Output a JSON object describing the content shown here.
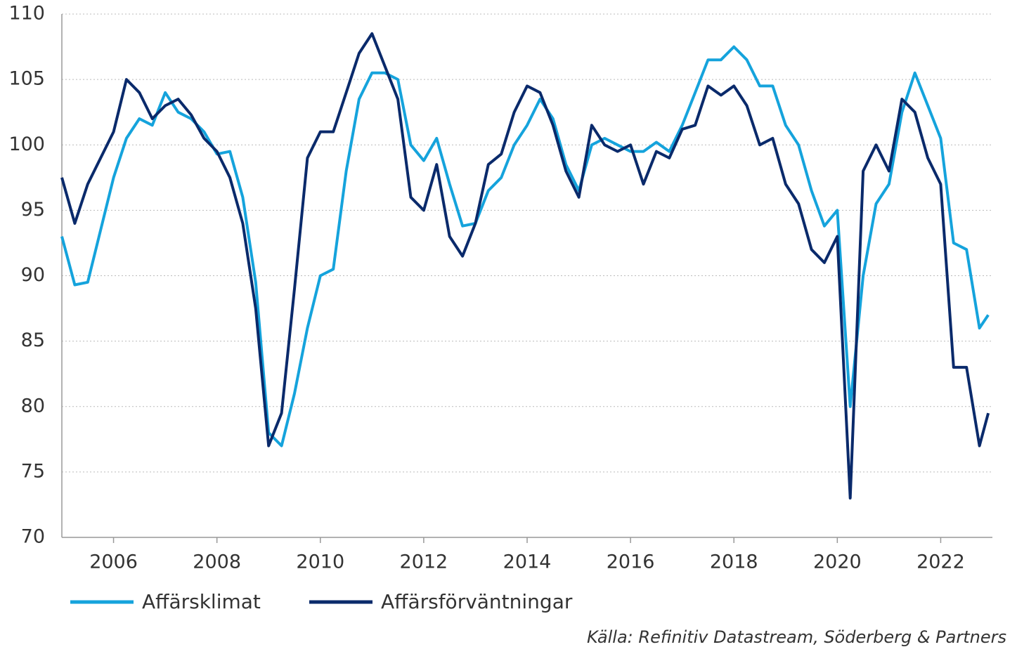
{
  "chart_data": {
    "type": "line",
    "x": [
      2005,
      2005.25,
      2005.5,
      2005.75,
      2006,
      2006.25,
      2006.5,
      2006.75,
      2007,
      2007.25,
      2007.5,
      2007.75,
      2008,
      2008.25,
      2008.5,
      2008.75,
      2009,
      2009.25,
      2009.5,
      2009.75,
      2010,
      2010.25,
      2010.5,
      2010.75,
      2011,
      2011.25,
      2011.5,
      2011.75,
      2012,
      2012.25,
      2012.5,
      2012.75,
      2013,
      2013.25,
      2013.5,
      2013.75,
      2014,
      2014.25,
      2014.5,
      2014.75,
      2015,
      2015.25,
      2015.5,
      2015.75,
      2016,
      2016.25,
      2016.5,
      2016.75,
      2017,
      2017.25,
      2017.5,
      2017.75,
      2018,
      2018.25,
      2018.5,
      2018.75,
      2019,
      2019.25,
      2019.5,
      2019.75,
      2020,
      2020.25,
      2020.5,
      2020.75,
      2021,
      2021.25,
      2021.5,
      2021.75,
      2022,
      2022.25,
      2022.5,
      2022.75,
      2022.92
    ],
    "series": [
      {
        "name": "Affärsklimat",
        "color": "#15a3dc",
        "values": [
          93,
          89.3,
          89.5,
          93.5,
          97.5,
          100.5,
          102,
          101.5,
          104,
          102.5,
          102,
          101,
          99.3,
          99.5,
          96,
          89.5,
          78,
          77,
          81,
          86,
          90,
          90.5,
          98,
          103.5,
          105.5,
          105.5,
          105,
          100,
          98.8,
          100.5,
          97,
          93.8,
          94,
          96.5,
          97.5,
          100,
          101.5,
          103.5,
          102,
          98.5,
          96.5,
          100,
          100.5,
          100,
          99.5,
          99.5,
          100.2,
          99.5,
          101.5,
          104,
          106.5,
          106.5,
          107.5,
          106.5,
          104.5,
          104.5,
          101.5,
          100,
          96.5,
          93.8,
          95,
          80,
          90,
          95.5,
          97,
          102.5,
          105.5,
          103,
          100.5,
          92.5,
          92,
          86,
          87
        ]
      },
      {
        "name": "Affärsförväntningar",
        "color": "#0a2a6b",
        "values": [
          97.5,
          94,
          97,
          99,
          101,
          105,
          104,
          102,
          103,
          103.5,
          102.3,
          100.5,
          99.5,
          97.5,
          94,
          87.5,
          77,
          79.5,
          89,
          99,
          101,
          101,
          104,
          107,
          108.5,
          106,
          103.5,
          96,
          95,
          98.5,
          93,
          91.5,
          94,
          98.5,
          99.3,
          102.5,
          104.5,
          104,
          101.5,
          98,
          96,
          101.5,
          100,
          99.5,
          100,
          97,
          99.5,
          99,
          101.2,
          101.5,
          104.5,
          103.8,
          104.5,
          103,
          100,
          100.5,
          97,
          95.5,
          92,
          91,
          93,
          73,
          98,
          100,
          98,
          103.5,
          102.5,
          99,
          97,
          83,
          83,
          77,
          79.5
        ]
      }
    ],
    "xlim": [
      2005,
      2023
    ],
    "xticks": [
      2006,
      2008,
      2010,
      2012,
      2014,
      2016,
      2018,
      2020,
      2022
    ],
    "ylim": [
      70,
      110
    ],
    "yticks": [
      70,
      75,
      80,
      85,
      90,
      95,
      100,
      105,
      110
    ],
    "grid": true,
    "legend": "bottom-left",
    "source": "Källa: Refinitiv Datastream, Söderberg & Partners"
  }
}
